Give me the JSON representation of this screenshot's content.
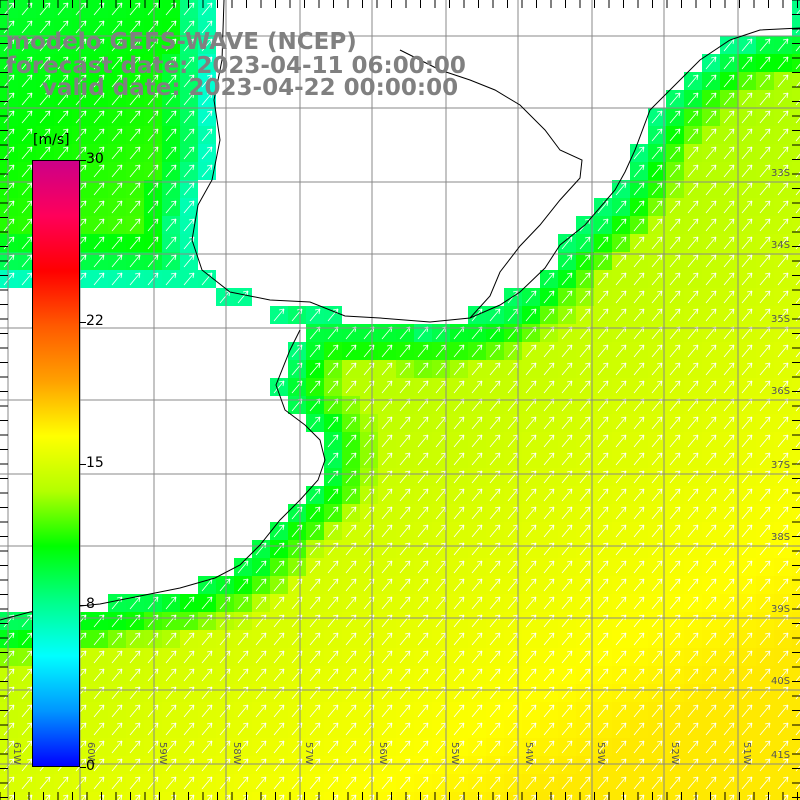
{
  "title": {
    "model": "modelo GEFS-WAVE (NCEP)",
    "forecast": "forecast date: 2023-04-11 06:00:00",
    "valid": "valid date: 2023-04-22 00:00:00"
  },
  "colorbar": {
    "unit": "[m/s]",
    "ticks": [
      "30",
      "22",
      "15",
      "8",
      "0"
    ],
    "tick_values": [
      30,
      22,
      15,
      8,
      0
    ],
    "range": [
      0,
      30
    ],
    "colors": [
      "#0000ff",
      "#0096ff",
      "#00ffff",
      "#00ff88",
      "#00ff00",
      "#b4ff00",
      "#ffff00",
      "#ffa000",
      "#ff5a00",
      "#ff0000",
      "#ff005a",
      "#cc0088"
    ]
  },
  "map": {
    "lat_labels": [
      "33S",
      "34S",
      "35S",
      "36S",
      "37S",
      "38S",
      "39S",
      "40S",
      "41S"
    ],
    "lon_labels": [
      "61W",
      "60W",
      "59W",
      "58W",
      "57W",
      "56W",
      "55W",
      "54W",
      "53W",
      "52W",
      "51W"
    ],
    "land_color": "#ffffff",
    "grid_color": "#888888",
    "arrow_color": "#ffffff",
    "coast_color": "#000000"
  }
}
